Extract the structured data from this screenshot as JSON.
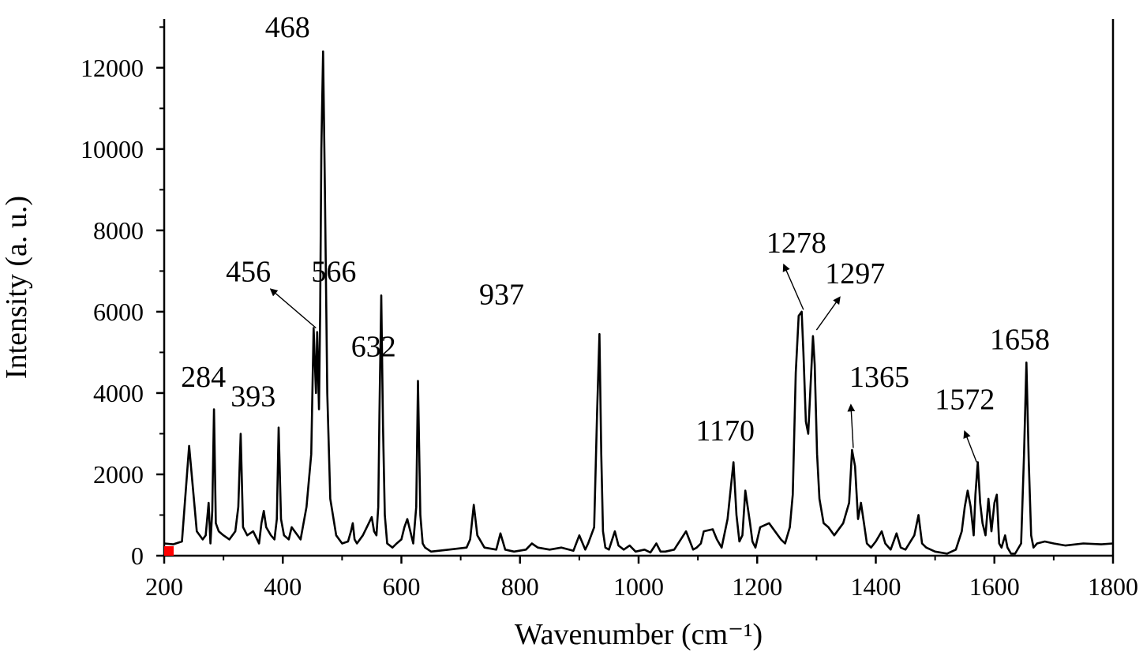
{
  "chart_data": {
    "type": "line",
    "xlabel": "Wavenumber (cm⁻¹)",
    "ylabel": "Intensity (a. u.)",
    "xlim": [
      200,
      1800
    ],
    "ylim": [
      0,
      13200
    ],
    "x_ticks": [
      200,
      400,
      600,
      800,
      1000,
      1200,
      1400,
      1600,
      1800
    ],
    "y_ticks": [
      0,
      2000,
      4000,
      6000,
      8000,
      10000,
      12000
    ],
    "x_tick_labels": [
      "200",
      "400",
      "600",
      "800",
      "1000",
      "1200",
      "1400",
      "1600",
      "1800"
    ],
    "y_tick_labels": [
      "0",
      "2000",
      "4000",
      "6000",
      "8000",
      "10000",
      "12000"
    ],
    "series": [
      {
        "color": "#000000",
        "x": [
          200,
          215,
          230,
          242,
          255,
          265,
          270,
          275,
          278,
          281,
          284,
          287,
          292,
          300,
          310,
          320,
          325,
          329,
          333,
          340,
          350,
          360,
          364,
          368,
          372,
          380,
          386,
          390,
          393,
          397,
          402,
          410,
          415,
          420,
          430,
          440,
          448,
          452,
          456,
          458,
          461,
          463,
          465,
          468,
          471,
          475,
          480,
          490,
          500,
          510,
          515,
          518,
          521,
          525,
          535,
          545,
          550,
          554,
          558,
          561,
          563,
          566,
          569,
          572,
          576,
          585,
          592,
          600,
          605,
          610,
          615,
          620,
          625,
          628,
          632,
          636,
          640,
          650,
          680,
          710,
          716,
          722,
          728,
          740,
          760,
          767,
          775,
          790,
          810,
          820,
          830,
          850,
          870,
          890,
          900,
          910,
          915,
          925,
          930,
          934,
          937,
          940,
          944,
          950,
          960,
          966,
          975,
          985,
          995,
          1010,
          1020,
          1030,
          1037,
          1045,
          1060,
          1080,
          1092,
          1098,
          1105,
          1110,
          1125,
          1132,
          1140,
          1150,
          1160,
          1165,
          1170,
          1175,
          1180,
          1188,
          1192,
          1197,
          1205,
          1220,
          1240,
          1247,
          1255,
          1260,
          1265,
          1270,
          1275,
          1278,
          1282,
          1286,
          1290,
          1294,
          1297,
          1301,
          1305,
          1312,
          1320,
          1330,
          1345,
          1355,
          1360,
          1365,
          1370,
          1375,
          1380,
          1385,
          1392,
          1400,
          1410,
          1416,
          1425,
          1435,
          1442,
          1450,
          1465,
          1472,
          1478,
          1485,
          1500,
          1520,
          1535,
          1545,
          1550,
          1555,
          1560,
          1565,
          1568,
          1572,
          1576,
          1580,
          1585,
          1590,
          1595,
          1600,
          1604,
          1608,
          1612,
          1618,
          1622,
          1628,
          1635,
          1645,
          1650,
          1654,
          1658,
          1662,
          1666,
          1672,
          1685,
          1700,
          1720,
          1750,
          1780,
          1800
        ],
        "values": [
          300,
          280,
          350,
          2700,
          600,
          400,
          500,
          1300,
          300,
          1100,
          3600,
          800,
          600,
          500,
          400,
          600,
          1200,
          3000,
          700,
          500,
          600,
          300,
          800,
          1100,
          700,
          500,
          400,
          900,
          3150,
          900,
          500,
          400,
          700,
          600,
          400,
          1200,
          2500,
          5600,
          4000,
          5500,
          3600,
          6000,
          10000,
          12400,
          9000,
          4000,
          1400,
          500,
          300,
          350,
          600,
          800,
          400,
          300,
          500,
          800,
          950,
          600,
          500,
          1200,
          3500,
          6400,
          3200,
          1000,
          300,
          200,
          300,
          400,
          700,
          900,
          600,
          300,
          1200,
          4300,
          1000,
          300,
          200,
          100,
          150,
          200,
          400,
          1250,
          500,
          200,
          150,
          550,
          150,
          100,
          150,
          300,
          200,
          150,
          200,
          120,
          500,
          150,
          300,
          700,
          3500,
          5450,
          2500,
          600,
          200,
          150,
          600,
          250,
          150,
          250,
          100,
          150,
          80,
          300,
          100,
          100,
          150,
          600,
          150,
          200,
          300,
          600,
          650,
          400,
          200,
          900,
          2300,
          1000,
          350,
          500,
          1600,
          800,
          350,
          200,
          700,
          800,
          400,
          300,
          700,
          1500,
          4500,
          5900,
          6000,
          5000,
          3300,
          3000,
          4200,
          5400,
          4700,
          2500,
          1400,
          800,
          700,
          500,
          800,
          1300,
          2600,
          2200,
          900,
          1300,
          800,
          300,
          200,
          350,
          600,
          300,
          150,
          550,
          200,
          150,
          500,
          1000,
          300,
          200,
          100,
          50,
          150,
          600,
          1200,
          1600,
          1200,
          500,
          1500,
          2300,
          1300,
          800,
          500,
          1400,
          600,
          1300,
          1500,
          300,
          200,
          500,
          200,
          50,
          50,
          300,
          2500,
          4750,
          2300,
          500,
          200,
          300,
          350,
          300,
          250,
          300,
          280,
          300
        ]
      }
    ],
    "peak_labels": [
      "468",
      "456",
      "566",
      "632",
      "284",
      "393",
      "937",
      "1170",
      "1278",
      "1297",
      "1365",
      "1572",
      "1658"
    ],
    "peak_positions": [
      468,
      456,
      566,
      632,
      284,
      393,
      937,
      1170,
      1278,
      1297,
      1365,
      1572,
      1658
    ]
  }
}
